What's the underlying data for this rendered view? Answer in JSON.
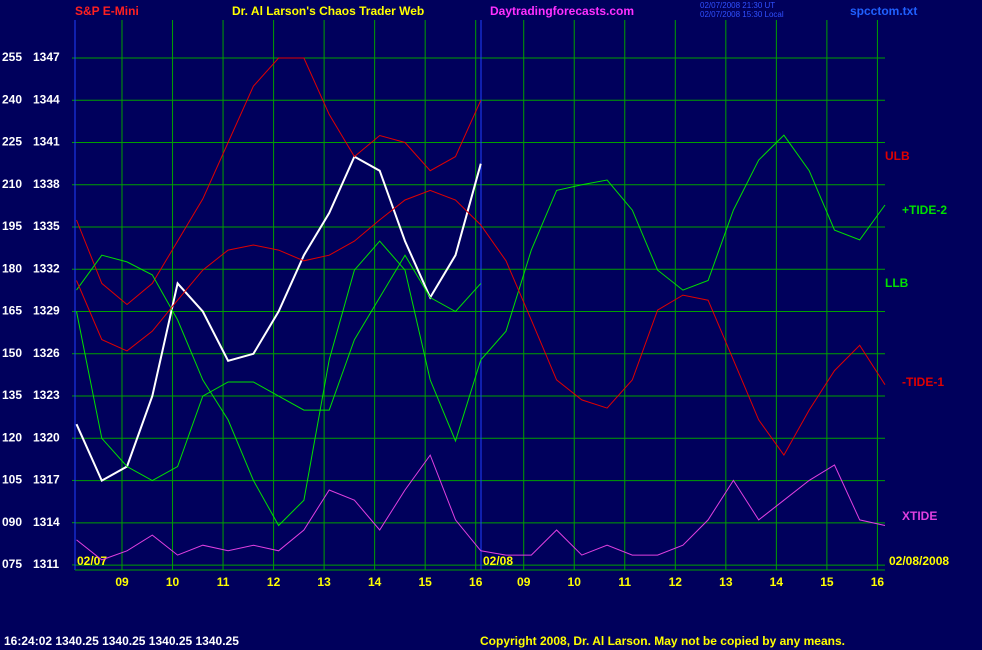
{
  "chart_data": {
    "type": "line",
    "title": "S&P E-Mini",
    "subtitle": "Dr. Al Larson's Chaos Trader Web",
    "site": "Daytradingforecasts.com",
    "stamp_lines": [
      "02/07/2008 21:30 UT",
      "02/07/2008 15:30 Local"
    ],
    "file_name": "spcctom.txt",
    "date_labels": [
      "02/07",
      "02/08",
      "02/08/2008"
    ],
    "status": "16:24:02  1340.25  1340.25  1340.25  1340.25",
    "copyright": "Copyright 2008, Dr. Al Larson. May not be copied by any means.",
    "grid": true,
    "x": [
      8.1,
      8.6,
      9.1,
      9.6,
      10.1,
      10.6,
      11.1,
      11.6,
      12.1,
      12.6,
      13.1,
      13.6,
      14.1,
      14.6,
      15.1,
      15.6,
      16.1,
      16.6,
      17.1,
      17.6,
      18.1,
      18.6,
      19.1,
      19.6,
      20.1,
      20.6,
      21.1,
      21.6,
      22.1,
      22.6,
      23.1,
      23.6,
      24.1
    ],
    "xlim": [
      8.07,
      24.1
    ],
    "xticks": [
      {
        "value": 9,
        "label": "09"
      },
      10,
      11,
      12,
      13,
      14,
      15,
      16,
      {
        "value": 16.95,
        "label": "09"
      },
      {
        "value": 17.95,
        "label": "10"
      },
      {
        "value": 18.95,
        "label": "11"
      },
      {
        "value": 19.95,
        "label": "12"
      },
      {
        "value": 20.95,
        "label": "13"
      },
      {
        "value": 21.95,
        "label": "14"
      },
      {
        "value": 22.95,
        "label": "15"
      },
      {
        "value": 23.95,
        "label": "16"
      }
    ],
    "ylim": [
      1310.65,
      1349.7
    ],
    "yticks": [
      1311,
      1314,
      1317,
      1320,
      1323,
      1326,
      1329,
      1332,
      1335,
      1338,
      1341,
      1344,
      1347
    ],
    "y2lim": [
      73.2,
      268.5
    ],
    "y2ticks": [
      {
        "value": 75,
        "label": "075"
      },
      {
        "value": 90,
        "label": "090"
      },
      105,
      120,
      135,
      150,
      165,
      180,
      195,
      210,
      225,
      240,
      255
    ],
    "series": [
      {
        "color": "#ffffff",
        "values": [
          1321,
          1317,
          1318,
          1323,
          1331,
          1329,
          1325.5,
          1326,
          1329,
          1333,
          1336,
          1340,
          1339,
          1334,
          1330,
          1333,
          1339.5,
          null,
          null,
          null,
          null,
          null,
          null,
          null,
          null,
          null,
          null,
          null,
          null,
          null,
          null,
          null,
          null
        ]
      },
      {
        "name": "ULB",
        "color": "#e00000",
        "values": [
          1335.5,
          1331,
          1329.5,
          1331,
          1334,
          1337,
          1341,
          1345,
          1347,
          1347,
          1343,
          1340,
          1341.5,
          1341,
          1339,
          1340,
          1344,
          null,
          null,
          null,
          null,
          null,
          null,
          null,
          null,
          null,
          null,
          null,
          null,
          null,
          null,
          null,
          null
        ]
      },
      {
        "name": "+TIDE-2",
        "color": "#00e000",
        "axis": "y2",
        "values": [
          172.6,
          185,
          182.6,
          178,
          162,
          140.7,
          126.5,
          105,
          89,
          98,
          147.8,
          179.7,
          190,
          179.7,
          140.7,
          119,
          147.8,
          158,
          186.8,
          208,
          210,
          211.7,
          201,
          179.7,
          172.6,
          176,
          201,
          218.8,
          227.6,
          215,
          193.9,
          190.4,
          202.8
        ]
      },
      {
        "name": "LLB",
        "color": "#00e000",
        "values": [
          1329,
          1320,
          1318,
          1317,
          1318,
          1323,
          1324,
          1324,
          1323,
          1322,
          1322,
          1327,
          1330,
          1333,
          1330,
          1329,
          1331,
          null,
          null,
          null,
          null,
          null,
          null,
          null,
          null,
          null,
          null,
          null,
          null,
          null,
          null,
          null,
          null
        ]
      },
      {
        "name": "-TIDE-1",
        "color": "#e00000",
        "axis": "y2",
        "values": [
          176,
          155,
          151,
          158,
          169,
          179.7,
          186.8,
          188.6,
          186.8,
          183,
          185,
          190,
          197.5,
          204.6,
          208,
          204.6,
          195.7,
          183,
          162,
          140.7,
          133.6,
          130.7,
          140.7,
          165.5,
          170.8,
          169,
          147.8,
          126.5,
          114,
          130,
          144,
          153,
          139
        ]
      },
      {
        "name": "XTIDE",
        "color": "#e040e0",
        "axis": "y2",
        "values": [
          83.9,
          76.8,
          80,
          85.6,
          78.5,
          82,
          80,
          82,
          80,
          87.4,
          101.6,
          98,
          87.4,
          101.6,
          114,
          91,
          80,
          78.5,
          78.5,
          87.4,
          78.5,
          82,
          78.5,
          78.5,
          82,
          91,
          105,
          91,
          98,
          105,
          110.5,
          91,
          89
        ]
      }
    ]
  }
}
